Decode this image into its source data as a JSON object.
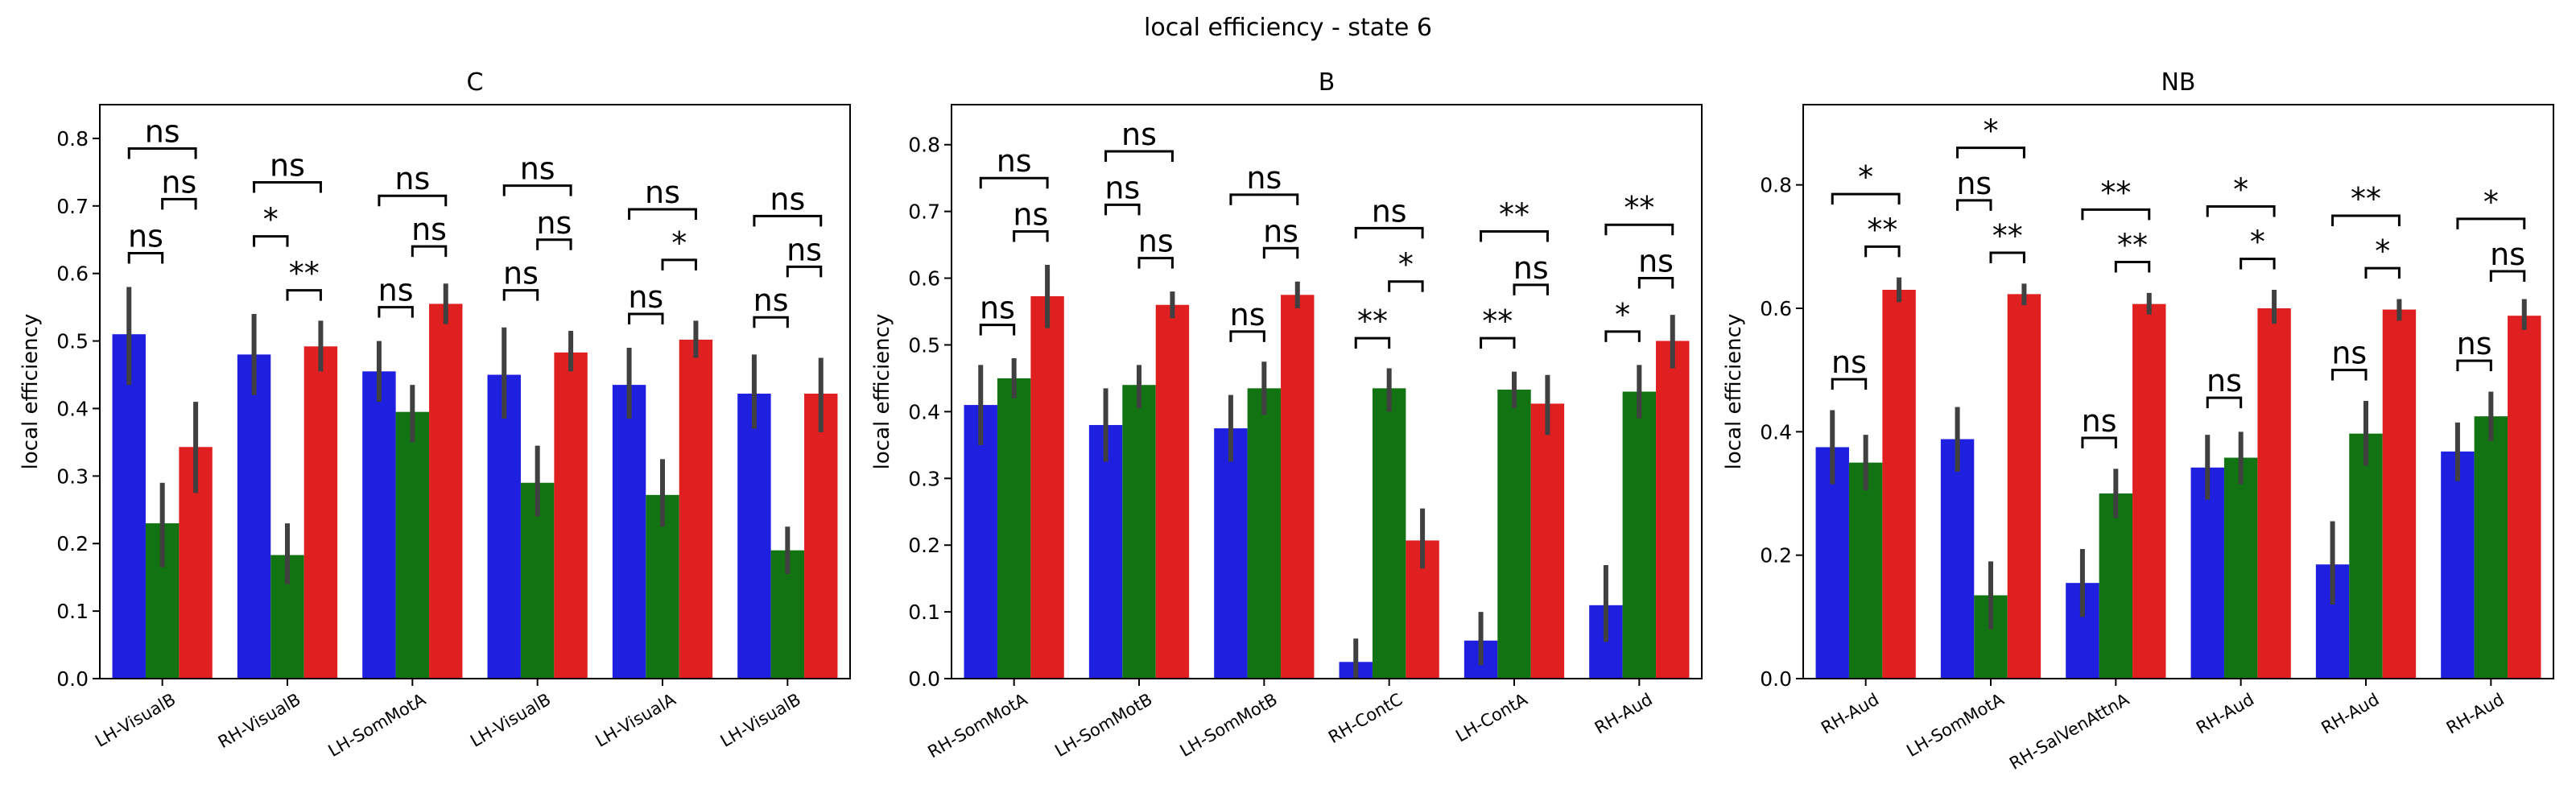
{
  "figure": {
    "suptitle": "local efficiency - state 6"
  },
  "colors": {
    "blue": "#1f1fe0",
    "green": "#127312",
    "red": "#e02020",
    "errbar": "#404040"
  },
  "chart_data": [
    {
      "type": "bar",
      "title": "C",
      "xlabel": "",
      "ylabel": "local efficiency",
      "ylim": [
        0,
        0.85
      ],
      "yticks": [
        0.0,
        0.1,
        0.2,
        0.3,
        0.4,
        0.5,
        0.6,
        0.7,
        0.8
      ],
      "ytick_labels": [
        "0.0",
        "0.1",
        "0.2",
        "0.3",
        "0.4",
        "0.5",
        "0.6",
        "0.7",
        "0.8"
      ],
      "categories": [
        "LH-VisualB",
        "RH-VisualB",
        "LH-SomMotA",
        "LH-VisualB",
        "LH-VisualA",
        "LH-VisualB"
      ],
      "series": [
        {
          "color": "#1f1fe0",
          "values": [
            0.51,
            0.48,
            0.455,
            0.45,
            0.435,
            0.422
          ],
          "err_low": [
            0.435,
            0.42,
            0.41,
            0.385,
            0.385,
            0.37
          ],
          "err_high": [
            0.58,
            0.54,
            0.5,
            0.52,
            0.49,
            0.48
          ]
        },
        {
          "color": "#127312",
          "values": [
            0.23,
            0.183,
            0.395,
            0.29,
            0.272,
            0.19
          ],
          "err_low": [
            0.165,
            0.14,
            0.35,
            0.24,
            0.225,
            0.155
          ],
          "err_high": [
            0.29,
            0.23,
            0.435,
            0.345,
            0.325,
            0.225
          ]
        },
        {
          "color": "#e02020",
          "values": [
            0.343,
            0.492,
            0.555,
            0.483,
            0.502,
            0.422
          ],
          "err_low": [
            0.275,
            0.455,
            0.525,
            0.455,
            0.475,
            0.365
          ],
          "err_high": [
            0.41,
            0.53,
            0.585,
            0.515,
            0.53,
            0.475
          ]
        }
      ],
      "annotations": [
        {
          "category": 0,
          "pairs": [
            {
              "from": 0,
              "to": 1,
              "level": 0.63,
              "label": "ns"
            },
            {
              "from": 1,
              "to": 2,
              "level": 0.71,
              "label": "ns"
            },
            {
              "from": 0,
              "to": 2,
              "level": 0.785,
              "label": "ns"
            }
          ]
        },
        {
          "category": 1,
          "pairs": [
            {
              "from": 0,
              "to": 1,
              "level": 0.655,
              "label": "*"
            },
            {
              "from": 1,
              "to": 2,
              "level": 0.575,
              "label": "**"
            },
            {
              "from": 0,
              "to": 2,
              "level": 0.735,
              "label": "ns"
            }
          ]
        },
        {
          "category": 2,
          "pairs": [
            {
              "from": 0,
              "to": 1,
              "level": 0.55,
              "label": "ns"
            },
            {
              "from": 1,
              "to": 2,
              "level": 0.64,
              "label": "ns"
            },
            {
              "from": 0,
              "to": 2,
              "level": 0.715,
              "label": "ns"
            }
          ]
        },
        {
          "category": 3,
          "pairs": [
            {
              "from": 0,
              "to": 1,
              "level": 0.575,
              "label": "ns"
            },
            {
              "from": 1,
              "to": 2,
              "level": 0.65,
              "label": "ns"
            },
            {
              "from": 0,
              "to": 2,
              "level": 0.73,
              "label": "ns"
            }
          ]
        },
        {
          "category": 4,
          "pairs": [
            {
              "from": 0,
              "to": 1,
              "level": 0.54,
              "label": "ns"
            },
            {
              "from": 1,
              "to": 2,
              "level": 0.62,
              "label": "*"
            },
            {
              "from": 0,
              "to": 2,
              "level": 0.695,
              "label": "ns"
            }
          ]
        },
        {
          "category": 5,
          "pairs": [
            {
              "from": 0,
              "to": 1,
              "level": 0.535,
              "label": "ns"
            },
            {
              "from": 1,
              "to": 2,
              "level": 0.61,
              "label": "ns"
            },
            {
              "from": 0,
              "to": 2,
              "level": 0.685,
              "label": "ns"
            }
          ]
        }
      ]
    },
    {
      "type": "bar",
      "title": "B",
      "xlabel": "",
      "ylabel": "local efficiency",
      "ylim": [
        0,
        0.86
      ],
      "yticks": [
        0.0,
        0.1,
        0.2,
        0.3,
        0.4,
        0.5,
        0.6,
        0.7,
        0.8
      ],
      "ytick_labels": [
        "0.0",
        "0.1",
        "0.2",
        "0.3",
        "0.4",
        "0.5",
        "0.6",
        "0.7",
        "0.8"
      ],
      "categories": [
        "RH-SomMotA",
        "LH-SomMotB",
        "LH-SomMotB",
        "RH-ContC",
        "LH-ContA",
        "RH-Aud"
      ],
      "series": [
        {
          "color": "#1f1fe0",
          "values": [
            0.41,
            0.38,
            0.375,
            0.025,
            0.057,
            0.11
          ],
          "err_low": [
            0.35,
            0.325,
            0.325,
            0.0,
            0.02,
            0.055
          ],
          "err_high": [
            0.47,
            0.435,
            0.425,
            0.06,
            0.1,
            0.17
          ]
        },
        {
          "color": "#127312",
          "values": [
            0.45,
            0.44,
            0.435,
            0.435,
            0.433,
            0.43
          ],
          "err_low": [
            0.42,
            0.405,
            0.395,
            0.4,
            0.405,
            0.39
          ],
          "err_high": [
            0.48,
            0.47,
            0.475,
            0.465,
            0.46,
            0.47
          ]
        },
        {
          "color": "#e02020",
          "values": [
            0.573,
            0.56,
            0.575,
            0.207,
            0.412,
            0.506
          ],
          "err_low": [
            0.525,
            0.54,
            0.555,
            0.165,
            0.365,
            0.465
          ],
          "err_high": [
            0.62,
            0.58,
            0.595,
            0.255,
            0.455,
            0.545
          ]
        }
      ],
      "annotations": [
        {
          "category": 0,
          "pairs": [
            {
              "from": 0,
              "to": 1,
              "level": 0.53,
              "label": "ns"
            },
            {
              "from": 1,
              "to": 2,
              "level": 0.67,
              "label": "ns"
            },
            {
              "from": 0,
              "to": 2,
              "level": 0.75,
              "label": "ns"
            }
          ]
        },
        {
          "category": 1,
          "pairs": [
            {
              "from": 0,
              "to": 1,
              "level": 0.71,
              "label": "ns"
            },
            {
              "from": 1,
              "to": 2,
              "level": 0.63,
              "label": "ns"
            },
            {
              "from": 0,
              "to": 2,
              "level": 0.79,
              "label": "ns"
            }
          ]
        },
        {
          "category": 2,
          "pairs": [
            {
              "from": 0,
              "to": 1,
              "level": 0.52,
              "label": "ns"
            },
            {
              "from": 1,
              "to": 2,
              "level": 0.645,
              "label": "ns"
            },
            {
              "from": 0,
              "to": 2,
              "level": 0.725,
              "label": "ns"
            }
          ]
        },
        {
          "category": 3,
          "pairs": [
            {
              "from": 0,
              "to": 1,
              "level": 0.51,
              "label": "**"
            },
            {
              "from": 1,
              "to": 2,
              "level": 0.595,
              "label": "*"
            },
            {
              "from": 0,
              "to": 2,
              "level": 0.675,
              "label": "ns"
            }
          ]
        },
        {
          "category": 4,
          "pairs": [
            {
              "from": 0,
              "to": 1,
              "level": 0.51,
              "label": "**"
            },
            {
              "from": 1,
              "to": 2,
              "level": 0.59,
              "label": "ns"
            },
            {
              "from": 0,
              "to": 2,
              "level": 0.67,
              "label": "**"
            }
          ]
        },
        {
          "category": 5,
          "pairs": [
            {
              "from": 0,
              "to": 1,
              "level": 0.52,
              "label": "*"
            },
            {
              "from": 1,
              "to": 2,
              "level": 0.6,
              "label": "ns"
            },
            {
              "from": 0,
              "to": 2,
              "level": 0.68,
              "label": "**"
            }
          ]
        }
      ]
    },
    {
      "type": "bar",
      "title": "NB",
      "xlabel": "",
      "ylabel": "local efficiency",
      "ylim": [
        0,
        0.93
      ],
      "yticks": [
        0.0,
        0.2,
        0.4,
        0.6,
        0.8
      ],
      "ytick_labels": [
        "0.0",
        "0.2",
        "0.4",
        "0.6",
        "0.8"
      ],
      "categories": [
        "RH-Aud",
        "LH-SomMotA",
        "RH-SalVenAttnA",
        "RH-Aud",
        "RH-Aud",
        "RH-Aud"
      ],
      "series": [
        {
          "color": "#1f1fe0",
          "values": [
            0.375,
            0.388,
            0.155,
            0.342,
            0.185,
            0.368
          ],
          "err_low": [
            0.315,
            0.335,
            0.1,
            0.29,
            0.12,
            0.32
          ],
          "err_high": [
            0.435,
            0.44,
            0.21,
            0.395,
            0.255,
            0.415
          ]
        },
        {
          "color": "#127312",
          "values": [
            0.35,
            0.135,
            0.3,
            0.358,
            0.397,
            0.425
          ],
          "err_low": [
            0.305,
            0.08,
            0.26,
            0.315,
            0.345,
            0.385
          ],
          "err_high": [
            0.395,
            0.19,
            0.34,
            0.4,
            0.45,
            0.465
          ]
        },
        {
          "color": "#e02020",
          "values": [
            0.63,
            0.623,
            0.607,
            0.6,
            0.598,
            0.588
          ],
          "err_low": [
            0.61,
            0.605,
            0.59,
            0.575,
            0.58,
            0.565
          ],
          "err_high": [
            0.65,
            0.64,
            0.625,
            0.63,
            0.615,
            0.615
          ]
        }
      ],
      "annotations": [
        {
          "category": 0,
          "pairs": [
            {
              "from": 0,
              "to": 1,
              "level": 0.485,
              "label": "ns"
            },
            {
              "from": 1,
              "to": 2,
              "level": 0.7,
              "label": "**"
            },
            {
              "from": 0,
              "to": 2,
              "level": 0.785,
              "label": "*"
            }
          ]
        },
        {
          "category": 1,
          "pairs": [
            {
              "from": 0,
              "to": 1,
              "level": 0.775,
              "label": "ns"
            },
            {
              "from": 1,
              "to": 2,
              "level": 0.69,
              "label": "**"
            },
            {
              "from": 0,
              "to": 2,
              "level": 0.86,
              "label": "*"
            }
          ]
        },
        {
          "category": 2,
          "pairs": [
            {
              "from": 0,
              "to": 1,
              "level": 0.39,
              "label": "ns"
            },
            {
              "from": 1,
              "to": 2,
              "level": 0.675,
              "label": "**"
            },
            {
              "from": 0,
              "to": 2,
              "level": 0.76,
              "label": "**"
            }
          ]
        },
        {
          "category": 3,
          "pairs": [
            {
              "from": 0,
              "to": 1,
              "level": 0.455,
              "label": "ns"
            },
            {
              "from": 1,
              "to": 2,
              "level": 0.68,
              "label": "*"
            },
            {
              "from": 0,
              "to": 2,
              "level": 0.765,
              "label": "*"
            }
          ]
        },
        {
          "category": 4,
          "pairs": [
            {
              "from": 0,
              "to": 1,
              "level": 0.5,
              "label": "ns"
            },
            {
              "from": 1,
              "to": 2,
              "level": 0.665,
              "label": "*"
            },
            {
              "from": 0,
              "to": 2,
              "level": 0.75,
              "label": "**"
            }
          ]
        },
        {
          "category": 5,
          "pairs": [
            {
              "from": 0,
              "to": 1,
              "level": 0.515,
              "label": "ns"
            },
            {
              "from": 1,
              "to": 2,
              "level": 0.66,
              "label": "ns"
            },
            {
              "from": 0,
              "to": 2,
              "level": 0.745,
              "label": "*"
            }
          ]
        }
      ]
    }
  ]
}
